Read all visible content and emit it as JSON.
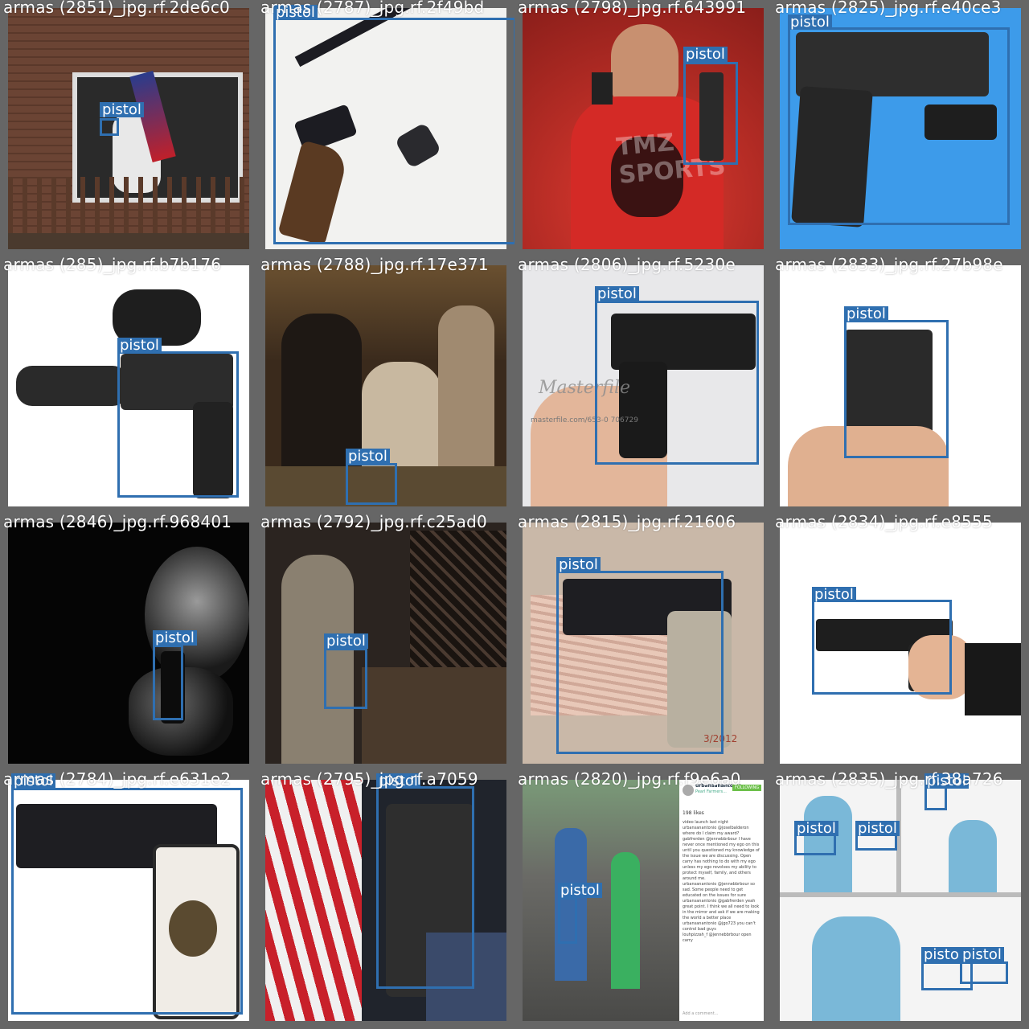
{
  "tiles": [
    {
      "filename": "armas (2851)_jpg.rf.2de6c0",
      "bg": "#5a3c30",
      "boxes": [
        {
          "label": "pistol"
        }
      ]
    },
    {
      "filename": "armas (2787)_jpg.rf.2f49bd",
      "bg": "#f2f2f0",
      "boxes": [
        {
          "label": "pistol"
        }
      ]
    },
    {
      "filename": "armas (2798)_jpg.rf.643991",
      "bg": "#c92b27",
      "boxes": [
        {
          "label": "pistol"
        }
      ],
      "watermark": "TMZ SPORTS"
    },
    {
      "filename": "armas (2825)_jpg.rf.e40ce3",
      "bg": "#3d9bea",
      "boxes": [
        {
          "label": "pistol"
        }
      ]
    },
    {
      "filename": "armas (285)_jpg.rf.b7b176",
      "bg": "#ffffff",
      "boxes": [
        {
          "label": "pistol"
        }
      ]
    },
    {
      "filename": "armas (2788)_jpg.rf.17e371",
      "bg": "#3a2a1c",
      "boxes": [
        {
          "label": "pistol"
        }
      ]
    },
    {
      "filename": "armas (2806)_jpg.rf.5230e",
      "bg": "#e8e8ea",
      "boxes": [
        {
          "label": "pistol"
        }
      ],
      "watermark": "Masterfile",
      "watermark_sub": "masterfile.com/653-0 706729"
    },
    {
      "filename": "armas (2833)_jpg.rf.27b98e",
      "bg": "#ffffff",
      "boxes": [
        {
          "label": "pistol"
        }
      ]
    },
    {
      "filename": "armas (2846)_jpg.rf.968401",
      "bg": "#050505",
      "boxes": [
        {
          "label": "pistol"
        }
      ]
    },
    {
      "filename": "armas (2792)_jpg.rf.c25ad0",
      "bg": "#2b2420",
      "boxes": [
        {
          "label": "pistol"
        }
      ]
    },
    {
      "filename": "armas (2815)_jpg.rf.21606",
      "bg": "#c9b8a8",
      "boxes": [
        {
          "label": "pistol"
        }
      ],
      "date_stamp": "3/2012"
    },
    {
      "filename": "armas (2834)_jpg.rf.e8555",
      "bg": "#ffffff",
      "boxes": [
        {
          "label": "pistol"
        }
      ]
    },
    {
      "filename": "armas (2784)_jpg.rf.e631e2",
      "bg": "#ffffff",
      "boxes": [
        {
          "label": "pistol"
        }
      ]
    },
    {
      "filename": "armas (2795)_jpg.rf.a7059",
      "bg": "#2c3548",
      "boxes": [
        {
          "label": "pistol"
        }
      ]
    },
    {
      "filename": "armas (2820)_jpg.rf.f9e6a0",
      "bg": "#8a8f88",
      "boxes": [
        {
          "label": "pistol"
        }
      ],
      "post": {
        "user": "urbansanantonio",
        "subtitle": "Pearl Farmers...",
        "follow": "FOLLOWING",
        "likes": "198 likes",
        "add_comment": "Add a comment...",
        "lines": [
          "video launch last night",
          "urbansanantonio @joselbalderon where do I claim my award?",
          "gabfrerden @jennebbrbour I have never once mentioned my ego on this until you questioned my knowledge of the issue we are discussing. Open carry has nothing to do with my ego unless my ego revolves my ability to protect myself, family, and others around me.",
          "urbansanantonio @jennebbrbour so sad. Some people need to get educated on the issues for sure",
          "urbansanantonio @gabfrerden yeah great point. I think we all need to look in the mirror and ask if we are making the world a better place",
          "urbansanantonio @jgo723 you can't control bad guys",
          "louhpizzah_f @jennebbrbour open carry"
        ]
      }
    },
    {
      "filename": "armas (2835)_jpg.rf.38a726",
      "bg": "#f4f4f4",
      "boxes": [
        {
          "label": "pistol"
        },
        {
          "label": "pistol"
        },
        {
          "label": "pistol"
        },
        {
          "label": "pistol"
        },
        {
          "label": "pistol"
        }
      ]
    }
  ]
}
